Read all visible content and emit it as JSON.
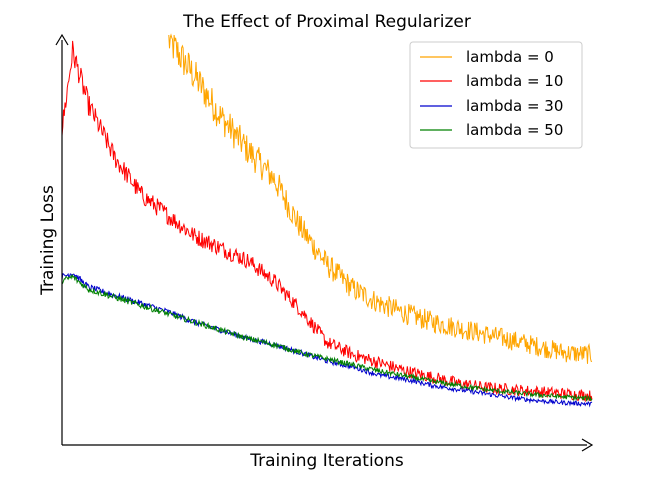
{
  "chart_data": {
    "type": "line",
    "title": "The Effect of Proximal Regularizer",
    "xlabel": "Training Iterations",
    "ylabel": "Training Loss",
    "x_ticks": false,
    "y_ticks": false,
    "grid": false,
    "legend_position": "top-right",
    "x": [
      0,
      0.02,
      0.05,
      0.1,
      0.15,
      0.2,
      0.25,
      0.3,
      0.35,
      0.4,
      0.45,
      0.5,
      0.55,
      0.6,
      0.65,
      0.7,
      0.75,
      0.8,
      0.85,
      0.9,
      0.95,
      1.0
    ],
    "xlim": [
      0,
      1
    ],
    "ylim": [
      0,
      1
    ],
    "series": [
      {
        "name": "lambda = 0",
        "color": "#FFA500",
        "values": [
          null,
          null,
          null,
          null,
          null,
          0.99,
          0.9,
          0.8,
          0.72,
          0.65,
          0.53,
          0.44,
          0.38,
          0.345,
          0.32,
          0.3,
          0.285,
          0.27,
          0.255,
          0.24,
          0.225,
          0.22
        ]
      },
      {
        "name": "lambda = 10",
        "color": "#FF0000",
        "values": [
          0.77,
          0.96,
          0.83,
          0.7,
          0.61,
          0.56,
          0.51,
          0.48,
          0.45,
          0.4,
          0.33,
          0.25,
          0.22,
          0.2,
          0.18,
          0.165,
          0.15,
          0.14,
          0.135,
          0.13,
          0.125,
          0.12
        ]
      },
      {
        "name": "lambda = 30",
        "color": "#0000CD",
        "values": [
          0.41,
          0.42,
          0.385,
          0.365,
          0.345,
          0.325,
          0.3,
          0.28,
          0.26,
          0.245,
          0.225,
          0.205,
          0.19,
          0.17,
          0.16,
          0.145,
          0.135,
          0.125,
          0.115,
          0.108,
          0.103,
          0.1
        ]
      },
      {
        "name": "lambda = 50",
        "color": "#008000",
        "values": [
          0.4,
          0.41,
          0.38,
          0.36,
          0.34,
          0.32,
          0.3,
          0.28,
          0.26,
          0.245,
          0.225,
          0.21,
          0.195,
          0.18,
          0.168,
          0.155,
          0.145,
          0.135,
          0.128,
          0.122,
          0.117,
          0.113
        ]
      }
    ]
  }
}
